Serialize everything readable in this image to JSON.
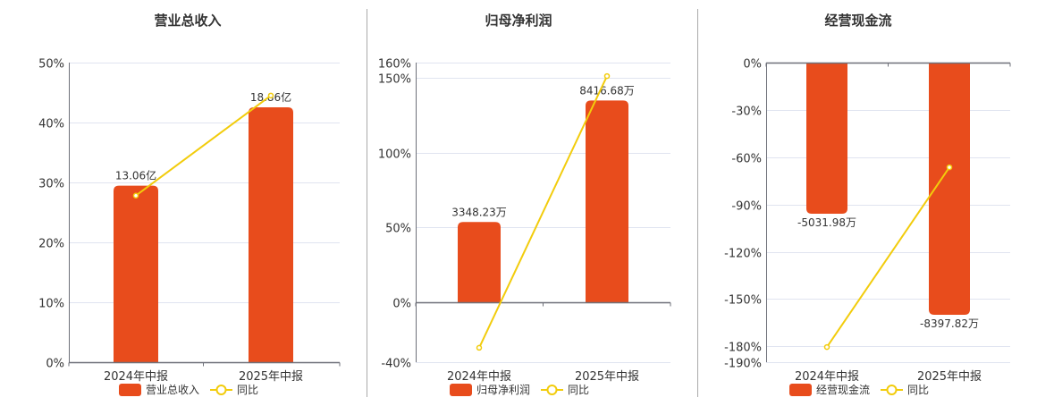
{
  "colors": {
    "bar": "#e84c1c",
    "line": "#f2cc0c",
    "grid": "#e0e4f0",
    "axis": "#6e7079",
    "separator": "#aaaaaa"
  },
  "chart_data": [
    {
      "type": "bar+line",
      "title": "营业总收入",
      "categories": [
        "2024年中报",
        "2025年中报"
      ],
      "bar_series": {
        "name": "营业总收入",
        "values": [
          13.06,
          18.86
        ],
        "labels": [
          "13.06亿",
          "18.86亿"
        ],
        "unit": "亿",
        "axis_range": [
          0,
          22.17
        ]
      },
      "line_series": {
        "name": "同比",
        "values": [
          27.8,
          44.5
        ],
        "unit": "%"
      },
      "ylim": [
        0,
        50
      ],
      "yticks": [
        0,
        10,
        20,
        30,
        40,
        50
      ],
      "ytick_labels": [
        "0%",
        "10%",
        "20%",
        "30%",
        "40%",
        "50%"
      ],
      "grid": true,
      "legend": "bottom"
    },
    {
      "type": "bar+line",
      "title": "归母净利润",
      "categories": [
        "2024年中报",
        "2025年中报"
      ],
      "bar_series": {
        "name": "归母净利润",
        "values": [
          3348.23,
          8416.68
        ],
        "labels": [
          "3348.23万",
          "8416.68万"
        ],
        "unit": "万",
        "axis_range": [
          -2500,
          10000
        ]
      },
      "line_series": {
        "name": "同比",
        "values": [
          -30.4,
          151
        ],
        "unit": "%"
      },
      "ylim": [
        -40,
        160
      ],
      "yticks": [
        -40,
        0,
        50,
        100,
        150,
        160
      ],
      "ytick_labels": [
        "-40%",
        "0%",
        "50%",
        "100%",
        "150%",
        "160%"
      ],
      "grid": true,
      "legend": "bottom"
    },
    {
      "type": "bar+line",
      "title": "经营现金流",
      "categories": [
        "2024年中报",
        "2025年中报"
      ],
      "bar_series": {
        "name": "经营现金流",
        "values": [
          -5031.98,
          -8397.82
        ],
        "labels": [
          "-5031.98万",
          "-8397.82万"
        ],
        "unit": "万",
        "axis_range": [
          -9976,
          0
        ]
      },
      "line_series": {
        "name": "同比",
        "values": [
          -180.4,
          -66.4
        ],
        "unit": "%"
      },
      "ylim": [
        -190,
        0
      ],
      "yticks": [
        -190,
        -180,
        -150,
        -120,
        -90,
        -60,
        -30,
        0
      ],
      "ytick_labels": [
        "-190%",
        "-180%",
        "-150%",
        "-120%",
        "-90%",
        "-60%",
        "-30%",
        "0%"
      ],
      "grid": true,
      "legend": "bottom"
    }
  ]
}
